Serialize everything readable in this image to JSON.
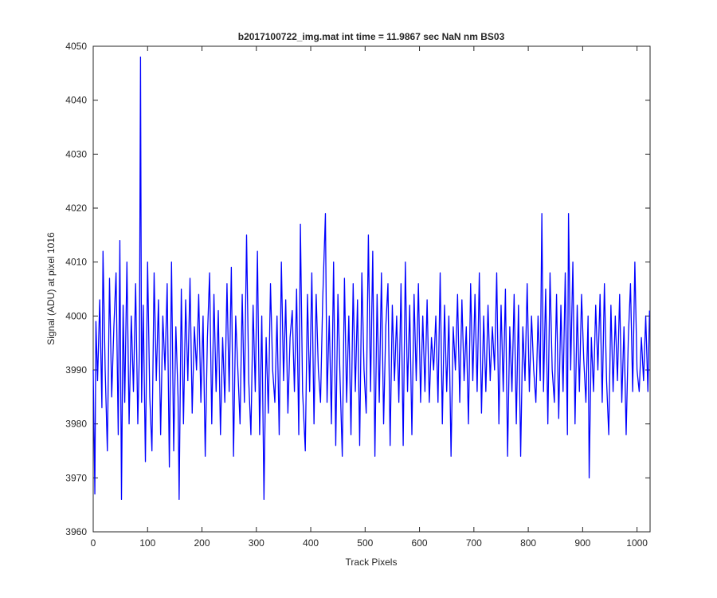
{
  "chart_data": {
    "type": "line",
    "title": "b2017100722_img.mat int time = 11.9867 sec  NaN nm BS03",
    "xlabel": "Track Pixels",
    "ylabel": "Signal (ADU) at pixel 1016",
    "color": "#0000ff",
    "xlim": [
      0,
      1024
    ],
    "ylim": [
      3960,
      4050
    ],
    "xticks": [
      0,
      100,
      200,
      300,
      400,
      500,
      600,
      700,
      800,
      900,
      1000
    ],
    "yticks": [
      3960,
      3970,
      3980,
      3990,
      4000,
      4010,
      4020,
      4030,
      4040,
      4050
    ],
    "x": [
      0,
      3,
      5,
      8,
      12,
      16,
      18,
      22,
      26,
      30,
      34,
      38,
      42,
      46,
      49,
      52,
      55,
      58,
      62,
      66,
      70,
      74,
      78,
      82,
      85,
      87,
      89,
      92,
      96,
      100,
      104,
      108,
      112,
      116,
      120,
      124,
      128,
      132,
      136,
      140,
      144,
      148,
      152,
      156,
      158,
      162,
      166,
      170,
      174,
      178,
      182,
      186,
      190,
      194,
      198,
      202,
      206,
      210,
      214,
      218,
      222,
      226,
      230,
      234,
      238,
      242,
      246,
      250,
      254,
      258,
      262,
      266,
      270,
      274,
      278,
      282,
      286,
      290,
      294,
      298,
      302,
      306,
      310,
      314,
      318,
      322,
      326,
      330,
      334,
      338,
      342,
      346,
      350,
      354,
      358,
      362,
      366,
      370,
      374,
      378,
      381,
      385,
      390,
      394,
      398,
      402,
      406,
      410,
      414,
      418,
      422,
      427,
      430,
      434,
      438,
      442,
      446,
      450,
      454,
      458,
      462,
      466,
      470,
      474,
      478,
      482,
      486,
      490,
      494,
      498,
      502,
      506,
      510,
      514,
      518,
      522,
      526,
      530,
      534,
      538,
      542,
      546,
      550,
      554,
      558,
      562,
      566,
      570,
      574,
      578,
      582,
      586,
      590,
      594,
      598,
      602,
      606,
      610,
      614,
      618,
      622,
      626,
      630,
      634,
      638,
      642,
      646,
      650,
      654,
      658,
      662,
      666,
      670,
      674,
      678,
      682,
      686,
      690,
      694,
      698,
      702,
      706,
      710,
      714,
      718,
      722,
      726,
      730,
      734,
      738,
      742,
      746,
      750,
      754,
      758,
      762,
      766,
      770,
      774,
      778,
      782,
      786,
      790,
      794,
      798,
      802,
      806,
      810,
      814,
      818,
      822,
      825,
      828,
      832,
      836,
      840,
      844,
      848,
      852,
      856,
      860,
      864,
      868,
      872,
      874,
      878,
      882,
      886,
      890,
      894,
      898,
      902,
      906,
      910,
      912,
      916,
      920,
      924,
      928,
      932,
      936,
      940,
      944,
      948,
      952,
      956,
      960,
      964,
      968,
      972,
      976,
      980,
      984,
      988,
      992,
      996,
      1000,
      1004,
      1008,
      1012,
      1016,
      1020,
      1023
    ],
    "values": [
      3990,
      3967,
      3999,
      3988,
      4003,
      3983,
      4012,
      3990,
      3975,
      4007,
      3985,
      3998,
      4008,
      3978,
      4014,
      3966,
      4002,
      3984,
      4010,
      3980,
      4000,
      3986,
      4006,
      3980,
      3994,
      4048,
      3984,
      4002,
      3973,
      4010,
      3985,
      3975,
      4008,
      3988,
      4003,
      3978,
      4000,
      3990,
      4006,
      3972,
      4010,
      3975,
      3998,
      3985,
      3966,
      4005,
      3980,
      4003,
      3988,
      4007,
      3982,
      3998,
      3990,
      4004,
      3984,
      4000,
      3974,
      3996,
      4008,
      3980,
      4004,
      3986,
      4001,
      3978,
      3996,
      3984,
      4006,
      3986,
      4009,
      3974,
      4000,
      3990,
      3980,
      4004,
      3984,
      4015,
      3988,
      3978,
      4002,
      3986,
      4012,
      3978,
      4000,
      3966,
      3996,
      3982,
      4006,
      3990,
      3984,
      4000,
      3978,
      4010,
      3988,
      4003,
      3982,
      3996,
      4001,
      3986,
      4005,
      3978,
      4017,
      3986,
      3975,
      4004,
      3986,
      4008,
      3980,
      4004,
      3990,
      3984,
      4003,
      4019,
      3984,
      4000,
      3980,
      4010,
      3976,
      4004,
      3988,
      3974,
      4007,
      3984,
      4000,
      3978,
      4006,
      3986,
      4003,
      3976,
      4008,
      3990,
      3982,
      4015,
      3986,
      4012,
      3974,
      4004,
      3984,
      4008,
      3980,
      3998,
      4006,
      3976,
      4002,
      3988,
      4000,
      3984,
      4006,
      3976,
      4010,
      3986,
      4002,
      3978,
      4004,
      3988,
      4006,
      3984,
      4000,
      3986,
      4003,
      3984,
      3996,
      3990,
      4000,
      3984,
      4008,
      3980,
      4002,
      3986,
      4000,
      3974,
      3998,
      3990,
      4004,
      3984,
      4003,
      3988,
      3998,
      3980,
      4006,
      3988,
      4004,
      3986,
      4008,
      3982,
      4000,
      3986,
      4002,
      3988,
      3998,
      3990,
      4008,
      3980,
      4002,
      3986,
      4005,
      3974,
      3998,
      3986,
      4004,
      3980,
      4002,
      3974,
      3998,
      3988,
      4006,
      3986,
      4000,
      3990,
      3984,
      4000,
      3988,
      4019,
      3986,
      4005,
      3980,
      4008,
      3990,
      3984,
      4004,
      3981,
      4002,
      3986,
      4008,
      3978,
      4019,
      3990,
      4010,
      3980,
      4002,
      3986,
      4004,
      3992,
      3984,
      4000,
      3970,
      3996,
      3986,
      4002,
      3990,
      4004,
      3984,
      4006,
      3988,
      3978,
      4002,
      3986,
      4000,
      3988,
      4004,
      3984,
      3998,
      3978,
      3996,
      4006,
      3986,
      4010,
      3990,
      3986,
      3996,
      3988,
      4000,
      3986,
      4001
    ]
  }
}
